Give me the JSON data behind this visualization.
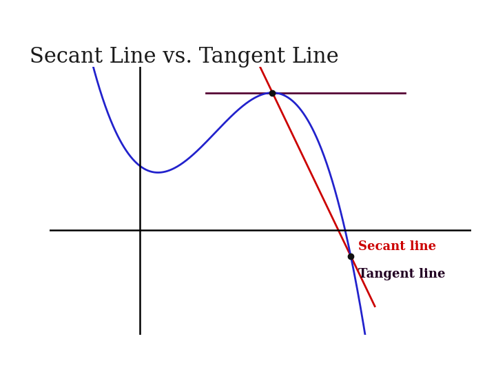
{
  "title": "Secant Line vs. Tangent Line",
  "title_fontsize": 22,
  "title_color": "#1a1a1a",
  "background_color": "#ffffff",
  "curve_color": "#2222cc",
  "curve_linewidth": 2.0,
  "secant_color": "#cc0000",
  "secant_linewidth": 2.0,
  "tangent_color": "#550033",
  "tangent_linewidth": 2.0,
  "dot_color": "#111111",
  "dot_size": 6,
  "secant_label": "Secant line",
  "secant_label_color": "#cc0000",
  "secant_label_fontsize": 13,
  "tangent_label": "Tangent line",
  "tangent_label_color": "#220022",
  "tangent_label_fontsize": 13,
  "header_navy": "#3a3a4a",
  "header_teal": "#3a8a8a",
  "header_light1": "#8ababa",
  "header_light2": "#aacccc"
}
